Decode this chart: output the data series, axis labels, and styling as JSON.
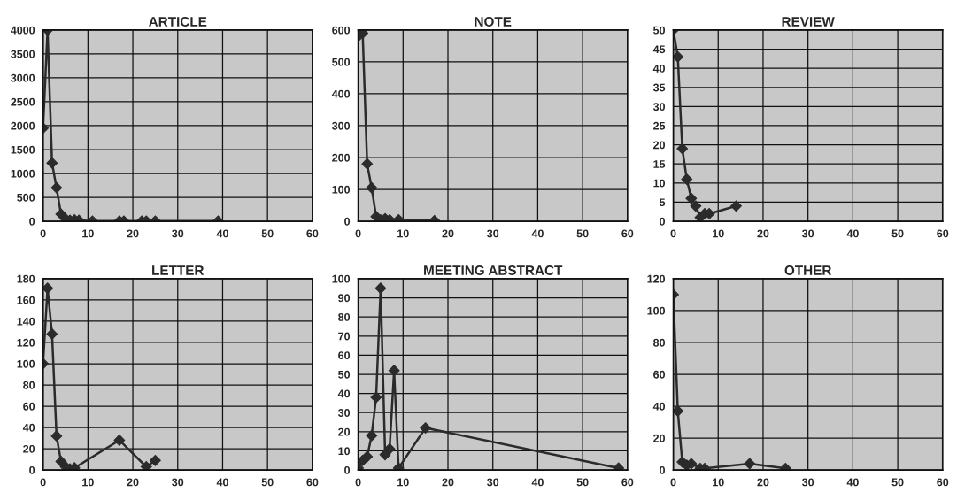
{
  "chart_data": [
    {
      "type": "line",
      "title": "ARTICLE",
      "marker": "diamond",
      "grid": true,
      "xlim": [
        0,
        60
      ],
      "xticks": [
        0,
        10,
        20,
        30,
        40,
        50,
        60
      ],
      "ylim": [
        0,
        4000
      ],
      "yticks": [
        0,
        500,
        1000,
        1500,
        2000,
        2500,
        3000,
        3500,
        4000
      ],
      "series": [
        {
          "color": "#2b2b2b",
          "x": [
            0,
            1,
            2,
            3,
            4,
            5,
            6,
            7,
            8,
            11,
            17,
            18,
            22,
            23,
            25,
            39
          ],
          "values": [
            1950,
            4000,
            1220,
            700,
            150,
            50,
            20,
            30,
            20,
            5,
            5,
            5,
            5,
            5,
            5,
            5
          ]
        }
      ]
    },
    {
      "type": "line",
      "title": "NOTE",
      "marker": "diamond",
      "grid": true,
      "xlim": [
        0,
        60
      ],
      "xticks": [
        0,
        10,
        20,
        30,
        40,
        50,
        60
      ],
      "ylim": [
        0,
        600
      ],
      "yticks": [
        0,
        100,
        200,
        300,
        400,
        500,
        600
      ],
      "series": [
        {
          "color": "#2b2b2b",
          "x": [
            0,
            1,
            2,
            3,
            4,
            5,
            6,
            7,
            9,
            17
          ],
          "values": [
            580,
            590,
            180,
            105,
            15,
            5,
            8,
            5,
            5,
            2
          ]
        }
      ]
    },
    {
      "type": "line",
      "title": "REVIEW",
      "marker": "diamond",
      "grid": true,
      "xlim": [
        0,
        60
      ],
      "xticks": [
        0,
        10,
        20,
        30,
        40,
        50,
        60
      ],
      "ylim": [
        0,
        50
      ],
      "yticks": [
        0,
        5,
        10,
        15,
        20,
        25,
        30,
        35,
        40,
        45,
        50
      ],
      "series": [
        {
          "color": "#2b2b2b",
          "x": [
            0,
            1,
            2,
            3,
            4,
            5,
            6,
            7,
            8,
            14
          ],
          "values": [
            50,
            43,
            19,
            11,
            6,
            4,
            1,
            2,
            2,
            4
          ]
        }
      ]
    },
    {
      "type": "line",
      "title": "LETTER",
      "marker": "diamond",
      "grid": true,
      "xlim": [
        0,
        60
      ],
      "xticks": [
        0,
        10,
        20,
        30,
        40,
        50,
        60
      ],
      "ylim": [
        0,
        180
      ],
      "yticks": [
        0,
        20,
        40,
        60,
        80,
        100,
        120,
        140,
        160,
        180
      ],
      "series": [
        {
          "color": "#2b2b2b",
          "x": [
            0,
            1,
            2,
            3,
            4,
            5,
            6,
            7,
            17,
            23,
            25
          ],
          "values": [
            100,
            171,
            128,
            32,
            8,
            3,
            1,
            2,
            28,
            3,
            9
          ]
        }
      ]
    },
    {
      "type": "line",
      "title": "MEETING ABSTRACT",
      "marker": "diamond",
      "grid": true,
      "xlim": [
        0,
        60
      ],
      "xticks": [
        0,
        10,
        20,
        30,
        40,
        50,
        60
      ],
      "ylim": [
        0,
        100
      ],
      "yticks": [
        0,
        10,
        20,
        30,
        40,
        50,
        60,
        70,
        80,
        90,
        100
      ],
      "series": [
        {
          "color": "#2b2b2b",
          "x": [
            0,
            1,
            2,
            3,
            4,
            5,
            6,
            7,
            8,
            9,
            15,
            58
          ],
          "values": [
            1,
            5,
            7,
            18,
            38,
            95,
            8,
            11,
            52,
            1,
            22,
            1
          ]
        }
      ]
    },
    {
      "type": "line",
      "title": "OTHER",
      "marker": "diamond",
      "grid": true,
      "xlim": [
        0,
        60
      ],
      "xticks": [
        0,
        10,
        20,
        30,
        40,
        50,
        60
      ],
      "ylim": [
        0,
        120
      ],
      "yticks": [
        0,
        20,
        40,
        60,
        80,
        100,
        120
      ],
      "series": [
        {
          "color": "#2b2b2b",
          "x": [
            0,
            1,
            2,
            3,
            4,
            6,
            7,
            17,
            25
          ],
          "values": [
            110,
            37,
            5,
            3,
            4,
            1,
            1,
            4,
            1
          ]
        }
      ]
    }
  ]
}
